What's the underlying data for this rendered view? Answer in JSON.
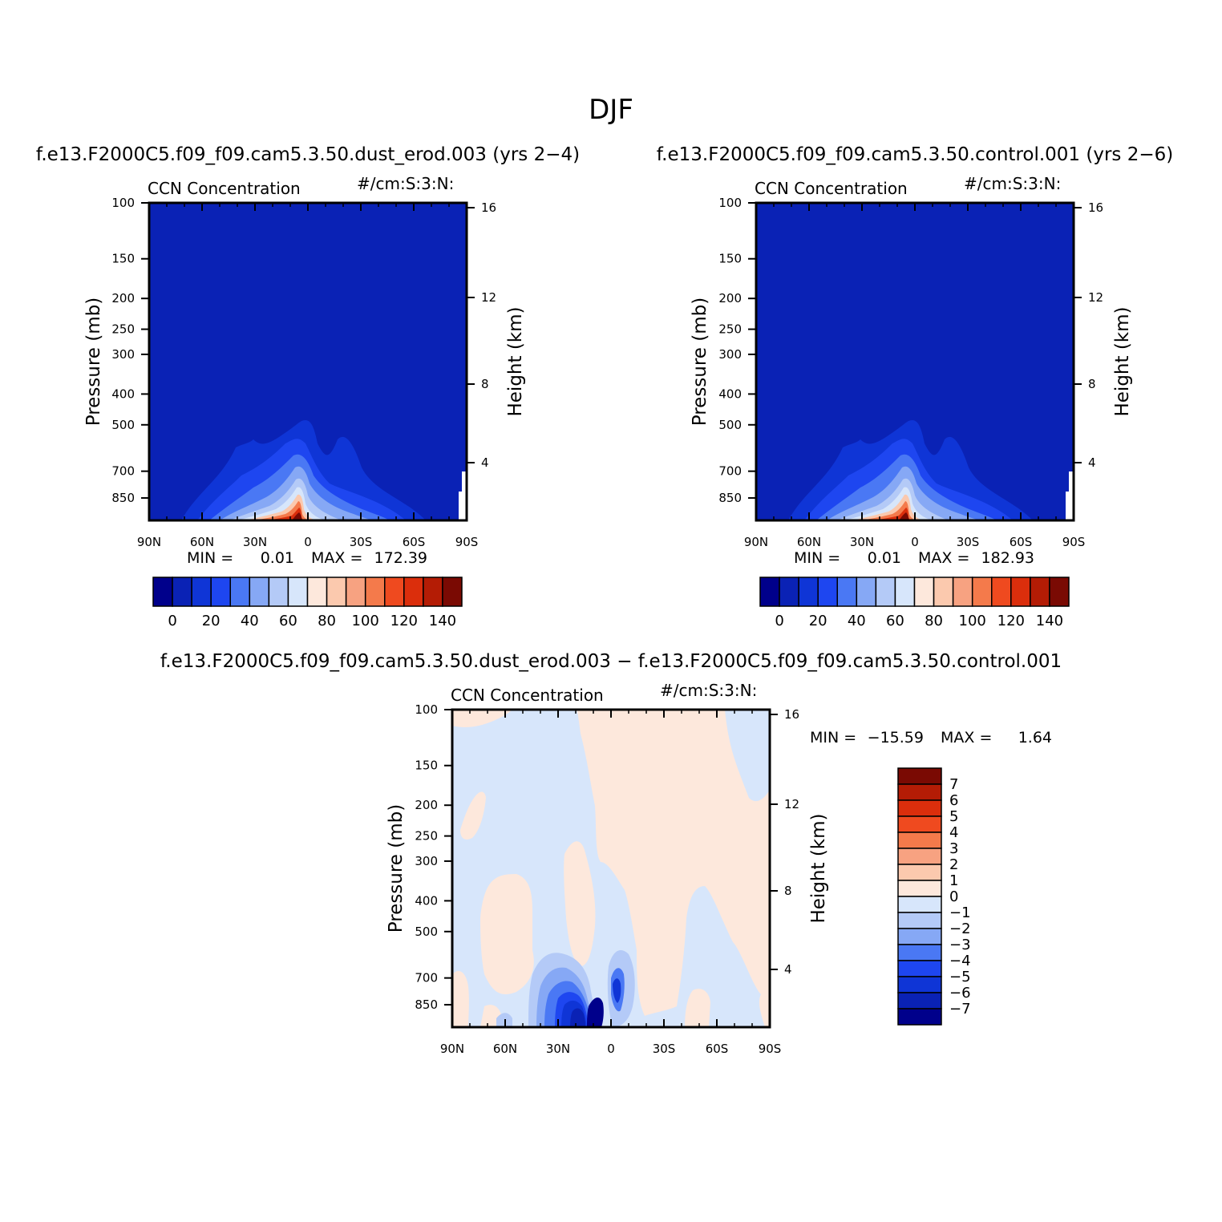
{
  "figure": {
    "title": "DJF"
  },
  "panels": [
    {
      "id": "dust",
      "subtitle": "f.e13.F2000C5.f09_f09.cam5.3.50.dust_erod.003 (yrs 2−4)",
      "field_label": "CCN Concentration",
      "units": "#/cm:S:3:N:",
      "stats": {
        "min_label": "MIN =",
        "min": "0.01",
        "max_label": "MAX =",
        "max": "172.39"
      }
    },
    {
      "id": "control",
      "subtitle": "f.e13.F2000C5.f09_f09.cam5.3.50.control.001 (yrs 2−6)",
      "field_label": "CCN Concentration",
      "units": "#/cm:S:3:N:",
      "stats": {
        "min_label": "MIN =",
        "min": "0.01",
        "max_label": "MAX =",
        "max": "182.93"
      }
    },
    {
      "id": "diff",
      "subtitle": "f.e13.F2000C5.f09_f09.cam5.3.50.dust_erod.003 − f.e13.F2000C5.f09_f09.cam5.3.50.control.001",
      "field_label": "CCN Concentration",
      "units": "#/cm:S:3:N:",
      "stats": {
        "min_label": "MIN =",
        "min": "−15.59",
        "max_label": "MAX =",
        "max": "1.64"
      }
    }
  ],
  "colorbars": {
    "absolute": {
      "colors": [
        "#00008b",
        "#0a22b5",
        "#0f35d6",
        "#1e46f0",
        "#4a78f4",
        "#86a8f5",
        "#b4caf7",
        "#d7e6fb",
        "#fde8dc",
        "#fbc9ae",
        "#f7a281",
        "#f47a4b",
        "#ef4a1f",
        "#db2e0c",
        "#b41c05",
        "#7a0a03"
      ],
      "labels": [
        "0",
        "20",
        "40",
        "60",
        "80",
        "100",
        "120",
        "140"
      ]
    },
    "difference": {
      "colors": [
        "#00008b",
        "#0a22b5",
        "#0f35d6",
        "#1e46f0",
        "#4a78f4",
        "#86a8f5",
        "#b4caf7",
        "#d7e6fb",
        "#fde8dc",
        "#fbc9ae",
        "#f7a281",
        "#f47a4b",
        "#ef4a1f",
        "#db2e0c",
        "#b41c05",
        "#7a0a03"
      ],
      "labels": [
        "7",
        "6",
        "5",
        "4",
        "3",
        "2",
        "1",
        "0",
        "−1",
        "−2",
        "−3",
        "−4",
        "−5",
        "−6",
        "−7"
      ]
    }
  },
  "chart_data": [
    {
      "type": "heatmap",
      "name": "dust_erod.003",
      "title": "CCN Concentration",
      "xlabel": "",
      "ylabel": "Pressure (mb)",
      "y2label": "Height (km)",
      "x_ticks": [
        "90N",
        "60N",
        "30N",
        "0",
        "30S",
        "60S",
        "90S"
      ],
      "y_ticks": [
        "100",
        "150",
        "200",
        "250",
        "300",
        "400",
        "500",
        "700",
        "850"
      ],
      "y2_ticks": [
        "16",
        "12",
        "8",
        "4"
      ],
      "min": 0.01,
      "max": 172.39
    },
    {
      "type": "heatmap",
      "name": "control.001",
      "title": "CCN Concentration",
      "xlabel": "",
      "ylabel": "Pressure (mb)",
      "y2label": "Height (km)",
      "x_ticks": [
        "90N",
        "60N",
        "30N",
        "0",
        "30S",
        "60S",
        "90S"
      ],
      "y_ticks": [
        "100",
        "150",
        "200",
        "250",
        "300",
        "400",
        "500",
        "700",
        "850"
      ],
      "y2_ticks": [
        "16",
        "12",
        "8",
        "4"
      ],
      "min": 0.01,
      "max": 182.93
    },
    {
      "type": "heatmap",
      "name": "difference",
      "title": "CCN Concentration",
      "xlabel": "",
      "ylabel": "Pressure (mb)",
      "y2label": "Height (km)",
      "x_ticks": [
        "90N",
        "60N",
        "30N",
        "0",
        "30S",
        "60S",
        "90S"
      ],
      "y_ticks": [
        "100",
        "150",
        "200",
        "250",
        "300",
        "400",
        "500",
        "700",
        "850"
      ],
      "y2_ticks": [
        "16",
        "12",
        "8",
        "4"
      ],
      "min": -15.59,
      "max": 1.64
    }
  ]
}
